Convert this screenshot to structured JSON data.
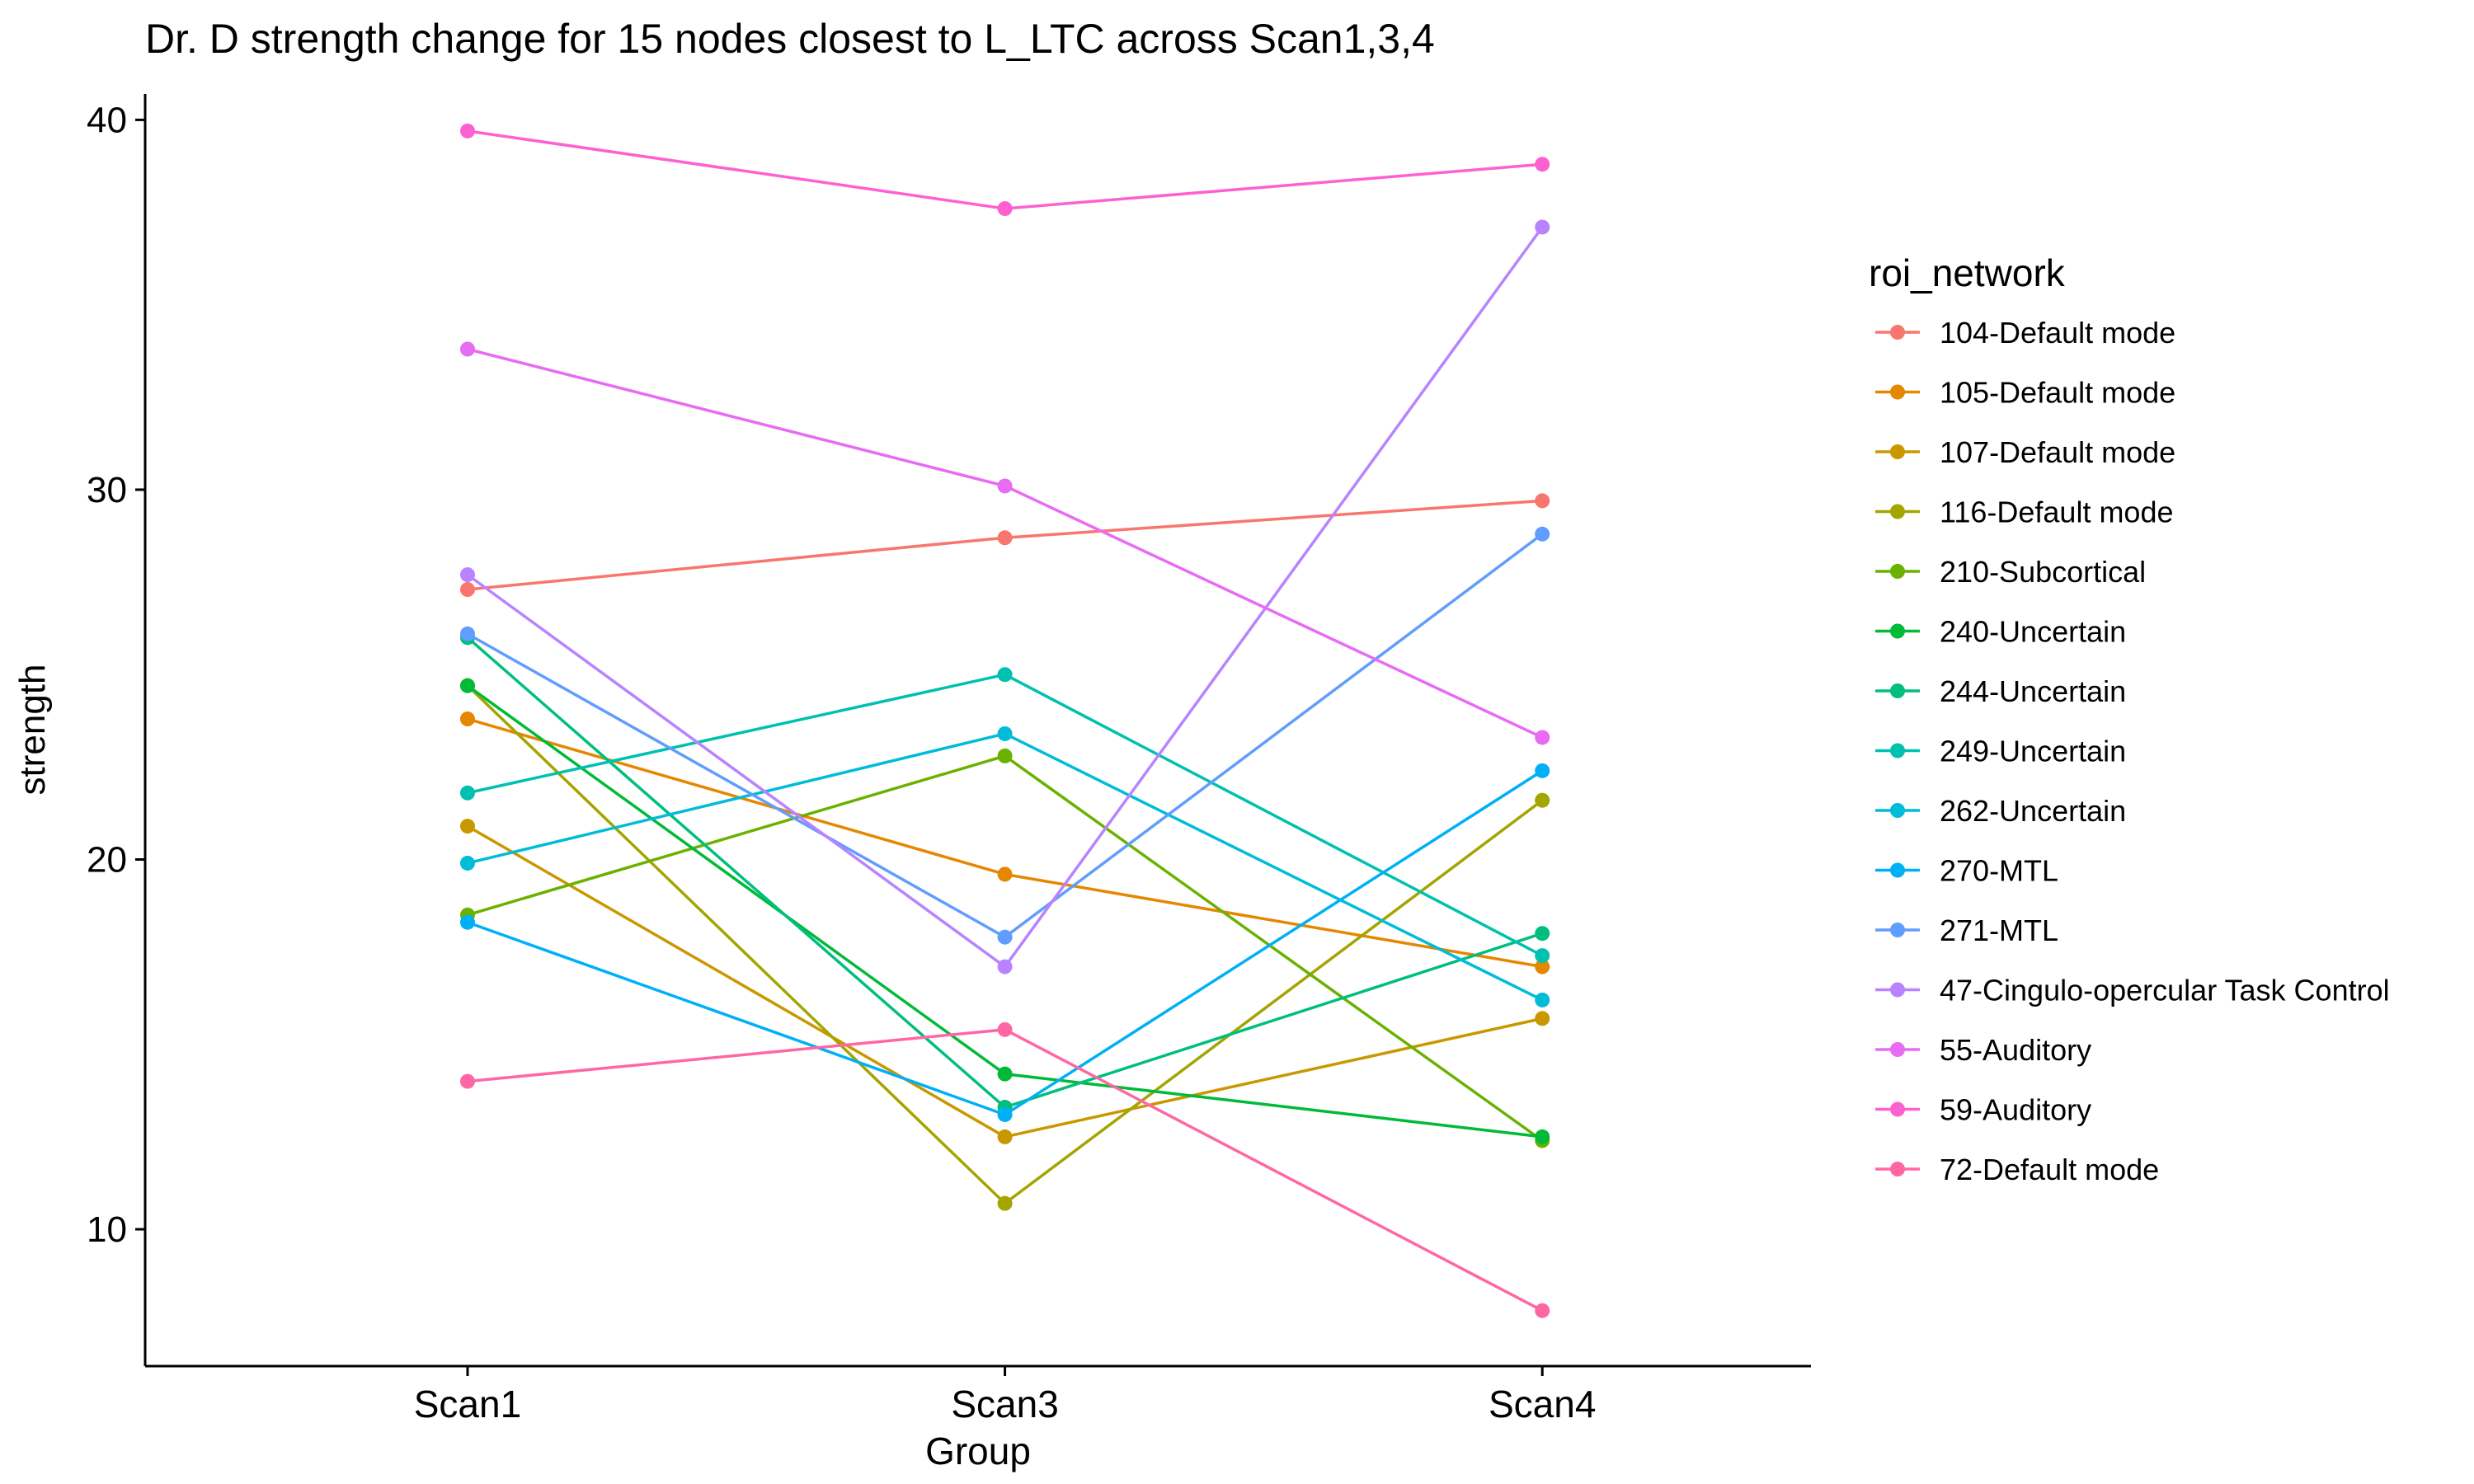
{
  "chart_data": {
    "type": "line",
    "title": "Dr. D strength change for 15 nodes closest to L_LTC across Scan1,3,4",
    "xlabel": "Group",
    "ylabel": "strength",
    "categories": [
      "Scan1",
      "Scan3",
      "Scan4"
    ],
    "ylim": [
      6.3,
      40.7
    ],
    "yticks": [
      10,
      20,
      30,
      40
    ],
    "grid": false,
    "legend_title": "roi_network",
    "legend_position": "right",
    "series": [
      {
        "name": "104-Default mode",
        "color": "#F8766D",
        "values": [
          27.3,
          28.7,
          29.7
        ]
      },
      {
        "name": "105-Default mode",
        "color": "#E58700",
        "values": [
          23.8,
          19.6,
          17.1
        ]
      },
      {
        "name": "107-Default mode",
        "color": "#C99800",
        "values": [
          20.9,
          12.5,
          15.7
        ]
      },
      {
        "name": "116-Default mode",
        "color": "#A3A500",
        "values": [
          24.7,
          10.7,
          21.6
        ]
      },
      {
        "name": "210-Subcortical",
        "color": "#6BB100",
        "values": [
          18.5,
          22.8,
          12.4
        ]
      },
      {
        "name": "240-Uncertain",
        "color": "#00BA38",
        "values": [
          24.7,
          14.2,
          12.5
        ]
      },
      {
        "name": "244-Uncertain",
        "color": "#00BF7D",
        "values": [
          26.0,
          13.3,
          18.0
        ]
      },
      {
        "name": "249-Uncertain",
        "color": "#00C0AF",
        "values": [
          21.8,
          25.0,
          17.4
        ]
      },
      {
        "name": "262-Uncertain",
        "color": "#00BCD8",
        "values": [
          19.9,
          23.4,
          16.2
        ]
      },
      {
        "name": "270-MTL",
        "color": "#00B0F6",
        "values": [
          18.3,
          13.1,
          22.4
        ]
      },
      {
        "name": "271-MTL",
        "color": "#619CFF",
        "values": [
          26.1,
          17.9,
          28.8
        ]
      },
      {
        "name": "47-Cingulo-opercular Task Control",
        "color": "#B983FF",
        "values": [
          27.7,
          17.1,
          37.1
        ]
      },
      {
        "name": "55-Auditory",
        "color": "#E76BF3",
        "values": [
          33.8,
          30.1,
          23.3
        ]
      },
      {
        "name": "59-Auditory",
        "color": "#FD61D1",
        "values": [
          39.7,
          37.6,
          38.8
        ]
      },
      {
        "name": "72-Default mode",
        "color": "#FF67A4",
        "values": [
          14.0,
          15.4,
          7.8
        ]
      }
    ]
  }
}
